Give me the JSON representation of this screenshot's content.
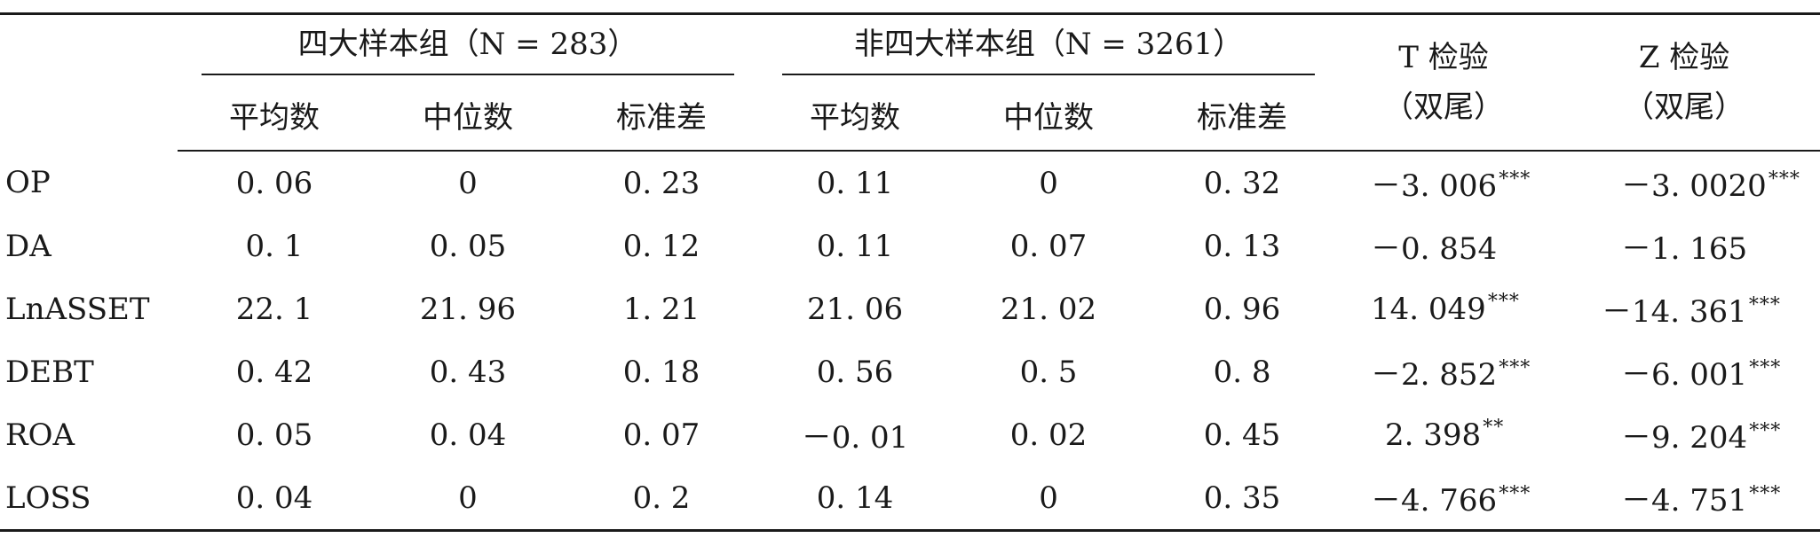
{
  "header": {
    "group_big4": "四大样本组（N = 283）",
    "group_nonbig4": "非四大样本组（N = 3261）",
    "t_test_line1": "T 检验",
    "t_test_line2": "（双尾）",
    "z_test_line1": "Z 检验",
    "z_test_line2": "（双尾）",
    "sub_mean": "平均数",
    "sub_median": "中位数",
    "sub_sd": "标准差"
  },
  "rows": [
    {
      "var": "OP",
      "b4_mean": "0. 06",
      "b4_median": "0",
      "b4_sd": "0. 23",
      "nb_mean": "0. 11",
      "nb_median": "0",
      "nb_sd": "0. 32",
      "t": "－3. 006",
      "t_sig": "***",
      "z": "－3. 0020",
      "z_sig": "***"
    },
    {
      "var": "DA",
      "b4_mean": "0. 1",
      "b4_median": "0. 05",
      "b4_sd": "0. 12",
      "nb_mean": "0. 11",
      "nb_median": "0. 07",
      "nb_sd": "0. 13",
      "t": "－0. 854",
      "t_sig": "",
      "z": "－1. 165",
      "z_sig": ""
    },
    {
      "var": "LnASSET",
      "b4_mean": "22. 1",
      "b4_median": "21. 96",
      "b4_sd": "1. 21",
      "nb_mean": "21. 06",
      "nb_median": "21. 02",
      "nb_sd": "0. 96",
      "t": "14. 049",
      "t_sig": "***",
      "z": "－14. 361",
      "z_sig": "***"
    },
    {
      "var": "DEBT",
      "b4_mean": "0. 42",
      "b4_median": "0. 43",
      "b4_sd": "0. 18",
      "nb_mean": "0. 56",
      "nb_median": "0. 5",
      "nb_sd": "0. 8",
      "t": "－2. 852",
      "t_sig": "***",
      "z": "－6. 001",
      "z_sig": "***"
    },
    {
      "var": "ROA",
      "b4_mean": "0. 05",
      "b4_median": "0. 04",
      "b4_sd": "0. 07",
      "nb_mean": "－0. 01",
      "nb_median": "0. 02",
      "nb_sd": "0. 45",
      "t": "2. 398",
      "t_sig": "**",
      "z": "－9. 204",
      "z_sig": "***"
    },
    {
      "var": "LOSS",
      "b4_mean": "0. 04",
      "b4_median": "0",
      "b4_sd": "0. 2",
      "nb_mean": "0. 14",
      "nb_median": "0",
      "nb_sd": "0. 35",
      "t": "－4. 766",
      "t_sig": "***",
      "z": "－4. 751",
      "z_sig": "***"
    }
  ]
}
